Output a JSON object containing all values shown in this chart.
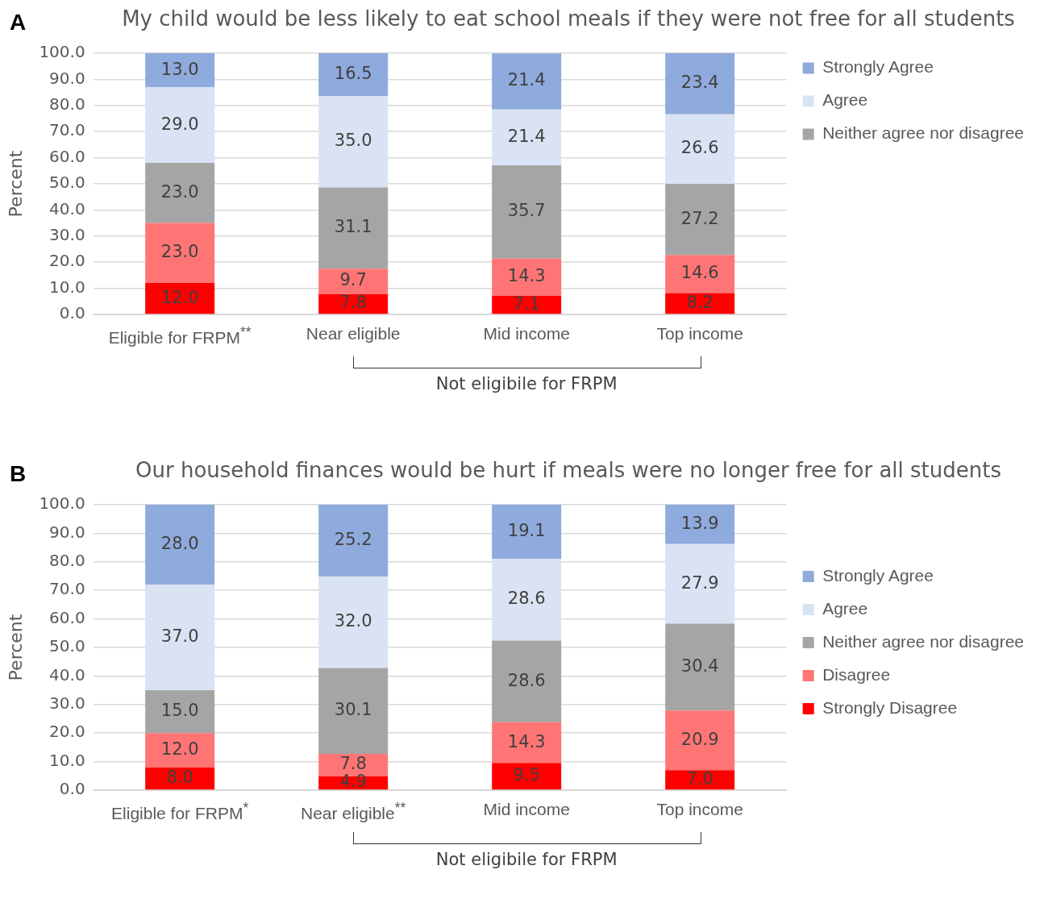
{
  "chart_data": [
    {
      "type": "bar",
      "title": "My child would be less likely to eat school meals if they were not free for all students",
      "ylabel": "Percent",
      "stacked": true,
      "grid": "y",
      "legend": "top right",
      "data_labels": true,
      "categories": [
        "Eligible for FRPM$^{**}$",
        "Near eligible",
        "Mid income",
        "Top income"
      ],
      "ylim": [
        0,
        100
      ],
      "yticks": [
        {
          "value": 0,
          "label": "0.0"
        },
        {
          "value": 10,
          "label": "10.0"
        },
        {
          "value": 20,
          "label": "20.0"
        },
        {
          "value": 30,
          "label": "30.0"
        },
        {
          "value": 40,
          "label": "40.0"
        },
        {
          "value": 50,
          "label": "50.0"
        },
        {
          "value": 60,
          "label": "60.0"
        },
        {
          "value": 70,
          "label": "70.0"
        },
        {
          "value": 80,
          "label": "80.0"
        },
        {
          "value": 90,
          "label": "90.0"
        },
        {
          "value": 100,
          "label": "100.0"
        }
      ],
      "series": [
        {
          "color": "#ff0000",
          "values": [
            12.0,
            7.8,
            7.1,
            8.2
          ],
          "value_labels": [
            "12.0",
            "7.8",
            "7.1",
            "8.2"
          ]
        },
        {
          "color": "#ff7575",
          "values": [
            23.0,
            9.7,
            14.3,
            14.6
          ],
          "value_labels": [
            "23.0",
            "9.7",
            "14.3",
            "14.6"
          ]
        },
        {
          "name": "Neither agree nor disagree",
          "color": "#a5a5a5",
          "values": [
            23.0,
            31.1,
            35.7,
            27.2
          ],
          "value_labels": [
            "23.0",
            "31.1",
            "35.7",
            "27.2"
          ]
        },
        {
          "name": "Agree",
          "color": "#dae3f3",
          "values": [
            29.0,
            35.0,
            21.4,
            26.6
          ],
          "value_labels": [
            "29.0",
            "35.0",
            "21.4",
            "26.6"
          ]
        },
        {
          "name": "Strongly Agree",
          "color": "#8faadc",
          "values": [
            13.0,
            16.5,
            21.4,
            23.4
          ],
          "value_labels": [
            "13.0",
            "16.5",
            "21.4",
            "23.4"
          ]
        }
      ],
      "annotations": [
        "A",
        "Not eligibile for FRPM"
      ]
    },
    {
      "type": "bar",
      "title": "Our household finances would be hurt if meals were no longer free for all students",
      "ylabel": "Percent",
      "stacked": true,
      "grid": "y",
      "legend": "right",
      "data_labels": true,
      "categories": [
        "Eligible for FRPM$^{*}$",
        "Near eligible$^{**}$",
        "Mid income",
        "Top income"
      ],
      "ylim": [
        0,
        100
      ],
      "yticks": [
        {
          "value": 0,
          "label": "0.0"
        },
        {
          "value": 10,
          "label": "10.0"
        },
        {
          "value": 20,
          "label": "20.0"
        },
        {
          "value": 30,
          "label": "30.0"
        },
        {
          "value": 40,
          "label": "40.0"
        },
        {
          "value": 50,
          "label": "50.0"
        },
        {
          "value": 60,
          "label": "60.0"
        },
        {
          "value": 70,
          "label": "70.0"
        },
        {
          "value": 80,
          "label": "80.0"
        },
        {
          "value": 90,
          "label": "90.0"
        },
        {
          "value": 100,
          "label": "100.0"
        }
      ],
      "series": [
        {
          "name": "Strongly Disagree",
          "color": "#ff0000",
          "values": [
            8.0,
            4.9,
            9.5,
            7.0
          ],
          "value_labels": [
            "8.0",
            "4.9",
            "9.5",
            "7.0"
          ]
        },
        {
          "name": "Disagree",
          "color": "#ff7575",
          "values": [
            12.0,
            7.8,
            14.3,
            20.9
          ],
          "value_labels": [
            "12.0",
            "7.8",
            "14.3",
            "20.9"
          ]
        },
        {
          "name": "Neither agree nor disagree",
          "color": "#a5a5a5",
          "values": [
            15.0,
            30.1,
            28.6,
            30.4
          ],
          "value_labels": [
            "15.0",
            "30.1",
            "28.6",
            "30.4"
          ]
        },
        {
          "name": "Agree",
          "color": "#dae3f3",
          "values": [
            37.0,
            32.0,
            28.6,
            27.9
          ],
          "value_labels": [
            "37.0",
            "32.0",
            "28.6",
            "27.9"
          ]
        },
        {
          "name": "Strongly Agree",
          "color": "#8faadc",
          "values": [
            28.0,
            25.2,
            19.1,
            13.9
          ],
          "value_labels": [
            "28.0",
            "25.2",
            "19.1",
            "13.9"
          ]
        }
      ],
      "annotations": [
        "B",
        "Not eligibile for FRPM"
      ]
    }
  ]
}
